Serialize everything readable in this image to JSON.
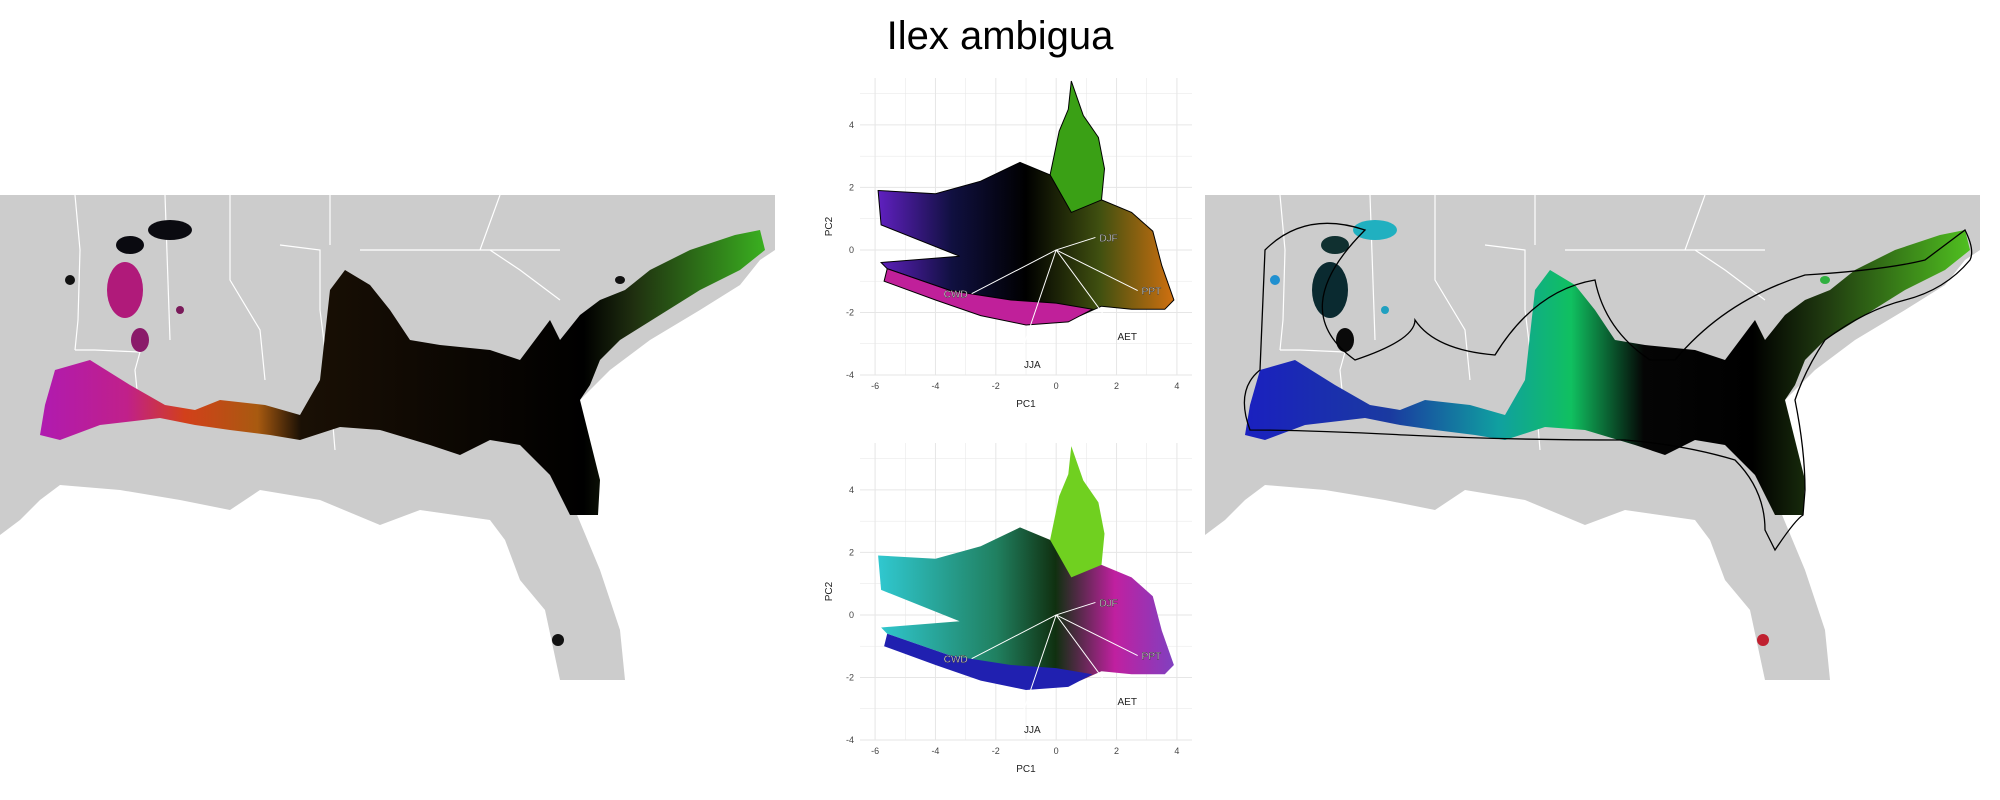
{
  "title": "Ilex ambigua",
  "colors": {
    "land": "#cccccc",
    "border": "#ffffff",
    "grid": "#e6e6e6",
    "hull": "#000000"
  },
  "chart_data": [
    {
      "type": "scatter",
      "panel": "top",
      "title": "",
      "xlabel": "PC1",
      "ylabel": "PC2",
      "xlim": [
        -6.5,
        4.5
      ],
      "ylim": [
        -4,
        5.5
      ],
      "xticks": [
        -6,
        -4,
        -2,
        0,
        2,
        4
      ],
      "yticks": [
        -4,
        -2,
        0,
        2,
        4
      ],
      "grid": true,
      "loadings": [
        {
          "name": "DJF",
          "x": 1.3,
          "y": 0.4
        },
        {
          "name": "PPT",
          "x": 2.7,
          "y": -1.3
        },
        {
          "name": "AET",
          "x": 1.9,
          "y": -2.5
        },
        {
          "name": "CWD",
          "x": -2.8,
          "y": -1.4
        },
        {
          "name": "JJA",
          "x": -1.2,
          "y": -3.4
        }
      ]
    },
    {
      "type": "scatter",
      "panel": "bottom",
      "title": "",
      "xlabel": "PC1",
      "ylabel": "PC2",
      "xlim": [
        -6.5,
        4.5
      ],
      "ylim": [
        -4,
        5.5
      ],
      "xticks": [
        -6,
        -4,
        -2,
        0,
        2,
        4
      ],
      "yticks": [
        -4,
        -2,
        0,
        2,
        4
      ],
      "grid": true,
      "loadings": [
        {
          "name": "DJF",
          "x": 1.3,
          "y": 0.4
        },
        {
          "name": "PPT",
          "x": 2.7,
          "y": -1.3
        },
        {
          "name": "AET",
          "x": 1.9,
          "y": -2.5
        },
        {
          "name": "CWD",
          "x": -2.8,
          "y": -1.4
        },
        {
          "name": "JJA",
          "x": -1.2,
          "y": -3.4
        }
      ]
    }
  ]
}
